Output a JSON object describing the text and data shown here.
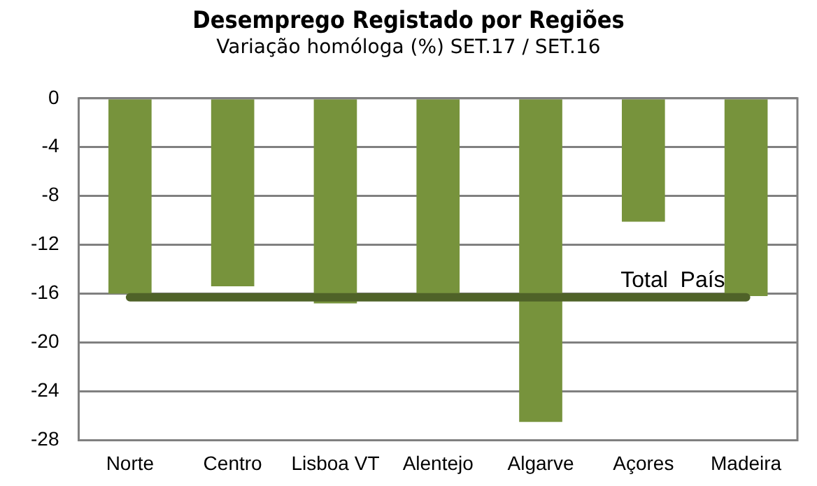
{
  "chart_data": {
    "type": "bar",
    "title": "Desemprego Registado por Regiões",
    "subtitle": "Variação homóloga (%)   SET.17 / SET.16",
    "categories": [
      "Norte",
      "Centro",
      "Lisboa VT",
      "Alentejo",
      "Algarve",
      "Açores",
      "Madeira"
    ],
    "values": [
      -16.0,
      -15.4,
      -16.8,
      -16.0,
      -26.5,
      -10.1,
      -16.2
    ],
    "color": "#77933c",
    "ylim": [
      -28,
      0
    ],
    "yticks": [
      0,
      -4,
      -8,
      -12,
      -16,
      -20,
      -24,
      -28
    ],
    "grid": "y",
    "ref_lines": [
      {
        "axis": "y",
        "value": -16.3,
        "label": "Total  País",
        "color": "#4f6228"
      }
    ]
  }
}
